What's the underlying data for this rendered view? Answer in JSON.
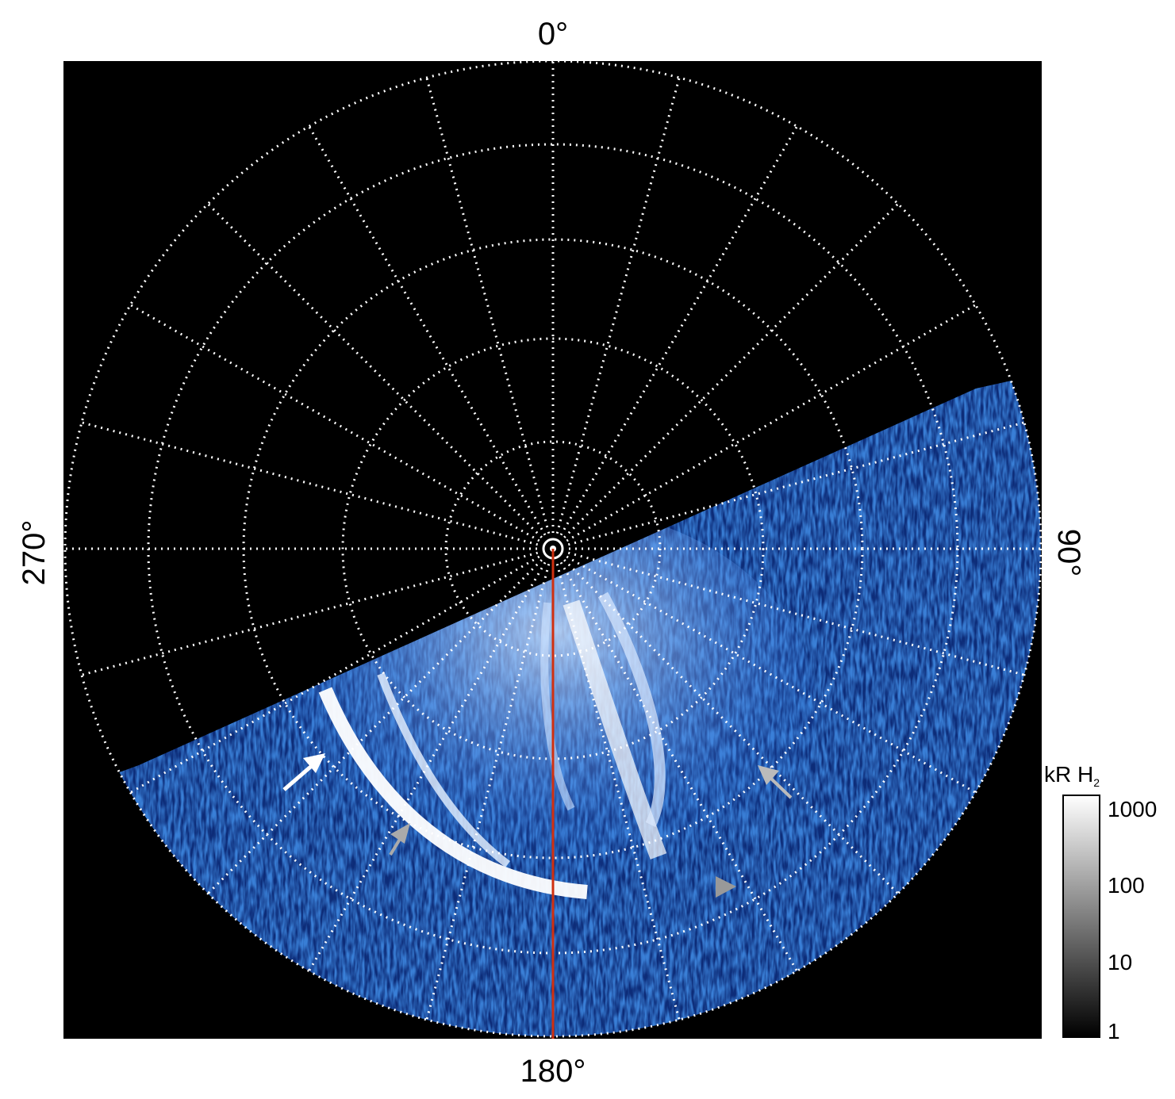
{
  "chart_data": {
    "type": "heatmap",
    "projection": "polar",
    "title": "",
    "angle_labels": {
      "top": "0°",
      "right": "90°",
      "bottom": "180°",
      "left": "270°"
    },
    "grid": true,
    "grid_style": "dotted white",
    "angular_grid_step_deg": 15,
    "radial_rings": 5,
    "colorbar": {
      "label": "kR H",
      "label_subscript": "2",
      "scale": "log",
      "range": [
        1,
        1000
      ],
      "ticks": [
        "1",
        "10",
        "100",
        "1000"
      ],
      "colormap": "black-to-white",
      "position": "bottom-right"
    },
    "image_colormap": "black-blue-white",
    "reference_line": {
      "color": "#d03010",
      "angle_deg": 180
    },
    "annotations": [
      {
        "type": "arrow",
        "color": "#ffffff"
      },
      {
        "type": "arrow",
        "color": "#bbbbbb"
      },
      {
        "type": "arrow",
        "color": "#aaaaaa"
      },
      {
        "type": "triangle",
        "color": "#999999"
      }
    ]
  }
}
